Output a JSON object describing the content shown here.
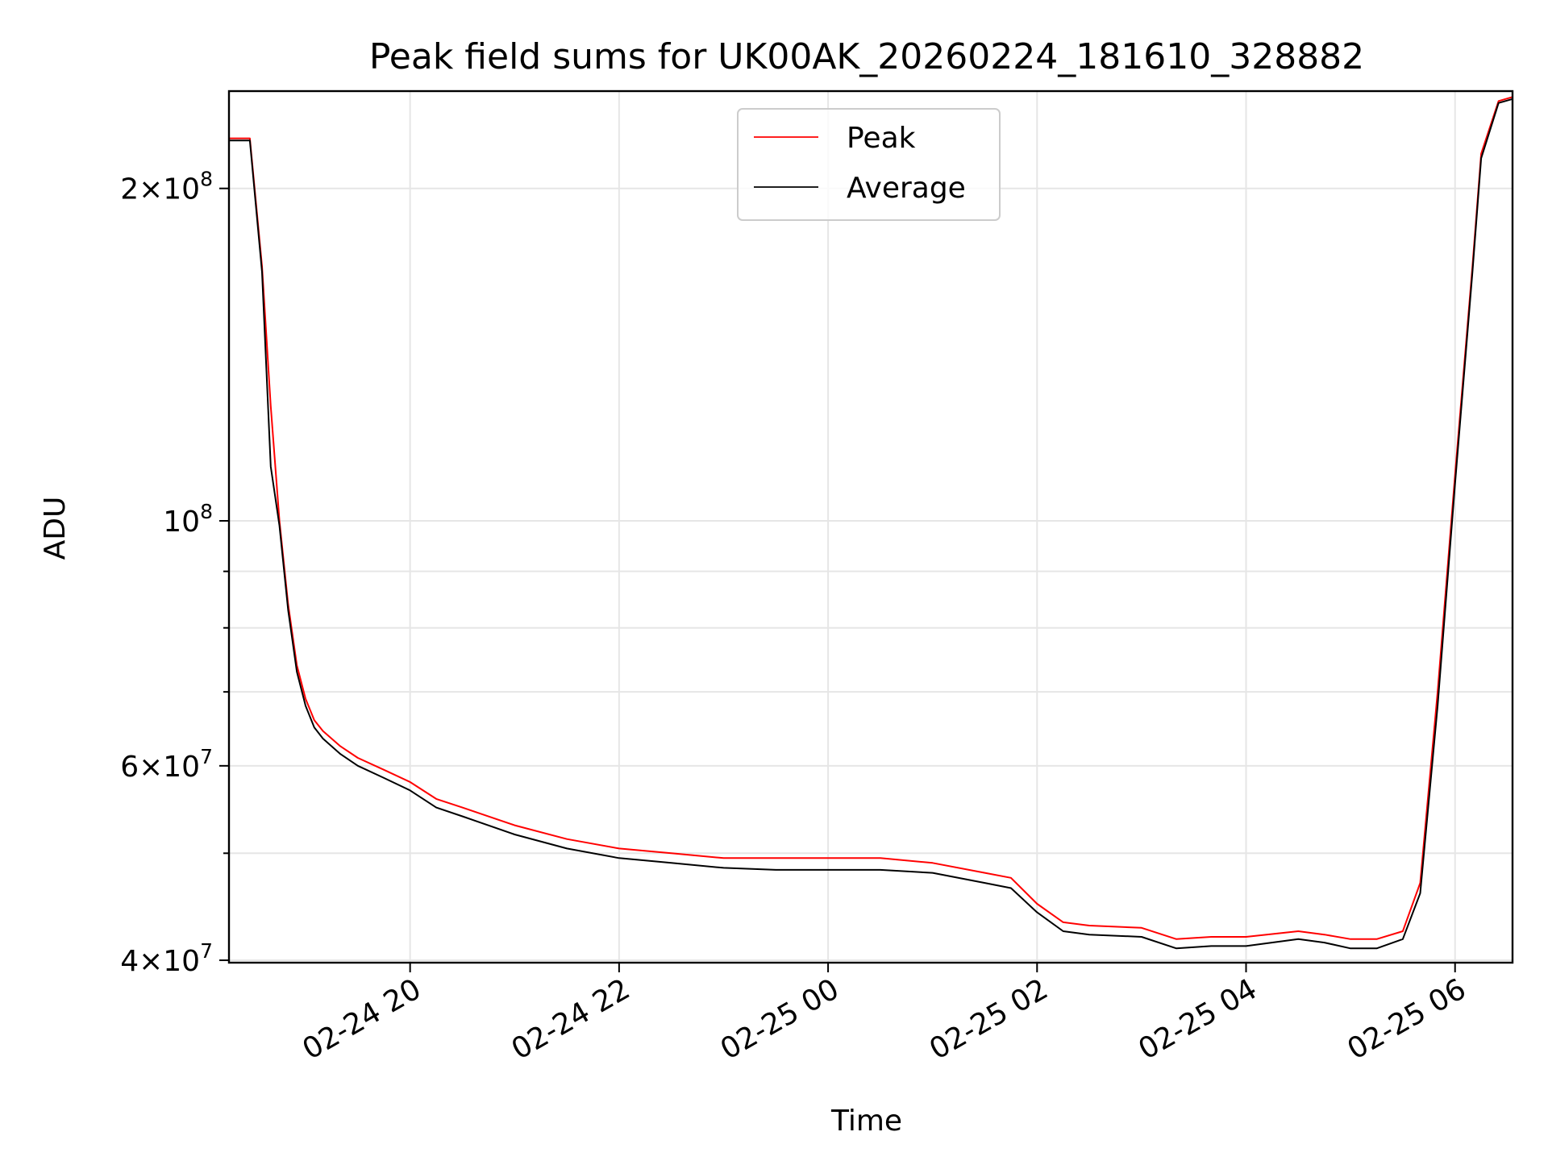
{
  "chart_data": {
    "type": "line",
    "title": "Peak field sums for UK00AK_20260224_181610_328882",
    "xlabel": "Time",
    "ylabel": "ADU",
    "x_axis_type": "time",
    "y_scale": "log",
    "xlim": [
      "2026-02-24 18:16",
      "2026-02-25 06:33"
    ],
    "ylim": [
      39800000,
      245000000
    ],
    "grid": true,
    "legend_position": "top-center",
    "x_ticks": [
      {
        "value": "2026-02-24 20:00",
        "label": "02-24 20"
      },
      {
        "value": "2026-02-24 22:00",
        "label": "02-24 22"
      },
      {
        "value": "2026-02-25 00:00",
        "label": "02-25 00"
      },
      {
        "value": "2026-02-25 02:00",
        "label": "02-25 02"
      },
      {
        "value": "2026-02-25 04:00",
        "label": "02-25 04"
      },
      {
        "value": "2026-02-25 06:00",
        "label": "02-25 06"
      }
    ],
    "y_ticks": [
      {
        "value": 40000000,
        "base": "4",
        "exp": "7"
      },
      {
        "value": 60000000,
        "base": "6",
        "exp": "7"
      },
      {
        "value": 100000000,
        "base": "",
        "exp": "8"
      },
      {
        "value": 200000000,
        "base": "2",
        "exp": "8"
      }
    ],
    "y_minor_ticks": [
      50000000,
      70000000,
      80000000,
      90000000
    ],
    "series": [
      {
        "name": "Peak",
        "color": "#ff0000",
        "x": [
          "2026-02-24 18:16",
          "2026-02-24 18:24",
          "2026-02-24 18:28",
          "2026-02-24 18:35",
          "2026-02-24 18:40",
          "2026-02-24 18:45",
          "2026-02-24 18:50",
          "2026-02-24 18:55",
          "2026-02-24 19:00",
          "2026-02-24 19:05",
          "2026-02-24 19:10",
          "2026-02-24 19:20",
          "2026-02-24 19:30",
          "2026-02-24 19:45",
          "2026-02-24 20:00",
          "2026-02-24 20:15",
          "2026-02-24 20:30",
          "2026-02-24 21:00",
          "2026-02-24 21:30",
          "2026-02-24 22:00",
          "2026-02-24 22:30",
          "2026-02-24 23:00",
          "2026-02-24 23:30",
          "2026-02-25 00:00",
          "2026-02-25 00:30",
          "2026-02-25 01:00",
          "2026-02-25 01:30",
          "2026-02-25 01:45",
          "2026-02-25 02:00",
          "2026-02-25 02:15",
          "2026-02-25 02:30",
          "2026-02-25 03:00",
          "2026-02-25 03:20",
          "2026-02-25 03:40",
          "2026-02-25 04:00",
          "2026-02-25 04:30",
          "2026-02-25 04:45",
          "2026-02-25 05:00",
          "2026-02-25 05:15",
          "2026-02-25 05:30",
          "2026-02-25 05:40",
          "2026-02-25 05:50",
          "2026-02-25 06:00",
          "2026-02-25 06:10",
          "2026-02-25 06:15",
          "2026-02-25 06:25",
          "2026-02-25 06:33"
        ],
        "y": [
          222000000,
          222000000,
          222000000,
          170000000,
          127000000,
          100000000,
          84000000,
          74000000,
          69000000,
          66000000,
          64500000,
          62500000,
          61000000,
          59500000,
          58000000,
          56000000,
          55000000,
          53000000,
          51500000,
          50500000,
          50000000,
          49500000,
          49500000,
          49500000,
          49500000,
          49000000,
          48000000,
          47500000,
          45000000,
          43300000,
          43000000,
          42800000,
          41800000,
          42000000,
          42000000,
          42500000,
          42200000,
          41800000,
          41800000,
          42500000,
          47000000,
          70000000,
          110000000,
          170000000,
          215000000,
          240000000,
          242000000
        ]
      },
      {
        "name": "Average",
        "color": "#000000",
        "x": [
          "2026-02-24 18:16",
          "2026-02-24 18:24",
          "2026-02-24 18:28",
          "2026-02-24 18:35",
          "2026-02-24 18:40",
          "2026-02-24 18:45",
          "2026-02-24 18:50",
          "2026-02-24 18:55",
          "2026-02-24 19:00",
          "2026-02-24 19:05",
          "2026-02-24 19:10",
          "2026-02-24 19:20",
          "2026-02-24 19:30",
          "2026-02-24 19:45",
          "2026-02-24 20:00",
          "2026-02-24 20:15",
          "2026-02-24 20:30",
          "2026-02-24 21:00",
          "2026-02-24 21:30",
          "2026-02-24 22:00",
          "2026-02-24 22:30",
          "2026-02-24 23:00",
          "2026-02-24 23:30",
          "2026-02-25 00:00",
          "2026-02-25 00:30",
          "2026-02-25 01:00",
          "2026-02-25 01:30",
          "2026-02-25 01:45",
          "2026-02-25 02:00",
          "2026-02-25 02:15",
          "2026-02-25 02:30",
          "2026-02-25 03:00",
          "2026-02-25 03:20",
          "2026-02-25 03:40",
          "2026-02-25 04:00",
          "2026-02-25 04:30",
          "2026-02-25 04:45",
          "2026-02-25 05:00",
          "2026-02-25 05:15",
          "2026-02-25 05:30",
          "2026-02-25 05:40",
          "2026-02-25 05:50",
          "2026-02-25 06:00",
          "2026-02-25 06:10",
          "2026-02-25 06:15",
          "2026-02-25 06:25",
          "2026-02-25 06:33"
        ],
        "y": [
          221000000,
          221000000,
          221000000,
          168000000,
          112000000,
          99000000,
          83000000,
          73000000,
          68000000,
          65000000,
          63500000,
          61500000,
          60000000,
          58500000,
          57000000,
          55000000,
          54000000,
          52000000,
          50500000,
          49500000,
          49000000,
          48500000,
          48300000,
          48300000,
          48300000,
          48000000,
          47000000,
          46500000,
          44200000,
          42500000,
          42200000,
          42000000,
          41000000,
          41200000,
          41200000,
          41800000,
          41500000,
          41000000,
          41000000,
          41800000,
          46000000,
          68000000,
          108000000,
          168000000,
          213000000,
          239000000,
          241000000
        ]
      }
    ]
  }
}
